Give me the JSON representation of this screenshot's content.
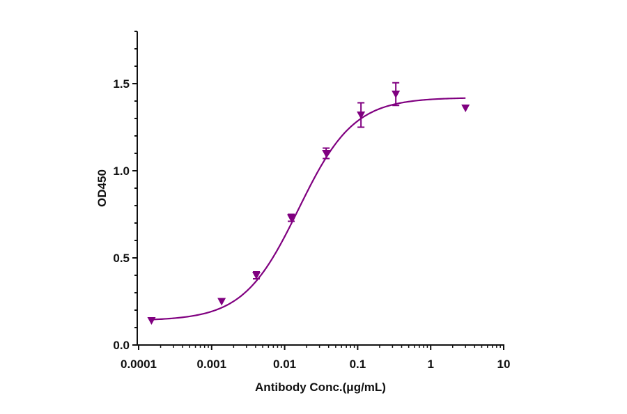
{
  "chart_data": {
    "type": "scatter",
    "title": "",
    "xlabel": "Antibody Conc.(μg/mL)",
    "ylabel": "OD450",
    "xscale": "log",
    "xlim": [
      0.0001,
      10
    ],
    "ylim": [
      0,
      1.8
    ],
    "x_ticks": [
      0.0001,
      0.001,
      0.01,
      0.1,
      1,
      10
    ],
    "x_tick_labels": [
      "0.0001",
      "0.001",
      "0.01",
      "0.1",
      "1",
      "10"
    ],
    "y_ticks": [
      0.0,
      0.5,
      1.0,
      1.5
    ],
    "y_tick_labels": [
      "0.0",
      "0.5",
      "1.0",
      "1.5"
    ],
    "y_minor_step": 0.1,
    "grid": false,
    "legend": null,
    "color": "#800080",
    "marker": "triangle-down",
    "series": [
      {
        "name": "OD450",
        "x": [
          0.00015,
          0.00137,
          0.0041,
          0.0123,
          0.037,
          0.111,
          0.333,
          3.0
        ],
        "y": [
          0.14,
          0.25,
          0.4,
          0.73,
          1.1,
          1.32,
          1.44,
          1.36
        ],
        "error": [
          0.0,
          0.0,
          0.02,
          0.02,
          0.03,
          0.07,
          0.065,
          0.0
        ]
      }
    ],
    "fit": {
      "model": "4PL",
      "bottom": 0.14,
      "top": 1.42,
      "ec50": 0.0155,
      "hill": 1.15,
      "x_range": [
        0.00015,
        3.0
      ]
    }
  }
}
